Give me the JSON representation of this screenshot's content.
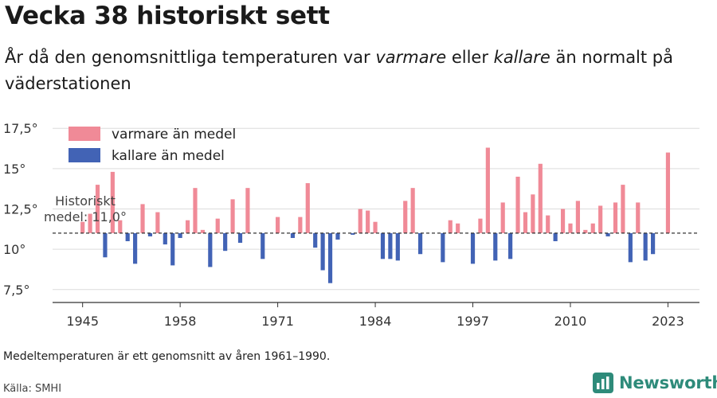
{
  "title": "Vecka 38 historiskt sett",
  "subtitle_before": "År då den genomsnittliga temperaturen var ",
  "subtitle_em1": "varmare",
  "subtitle_mid": " eller ",
  "subtitle_em2": "kallare",
  "subtitle_after": " än normalt på väderstationen",
  "note": "Medeltemperaturen är ett genomsnitt av åren 1961–1990.",
  "source": "Källa: SMHI",
  "brand": "Newsworthy",
  "colors": {
    "warm": "#f08a97",
    "cold": "#4263b5",
    "brand": "#2e8b7a"
  },
  "chart_data": {
    "type": "bar",
    "baseline": 11.0,
    "baseline_label_line1": "Historiskt",
    "baseline_label_line2": "medel: 11,0°",
    "x": [
      1945,
      1946,
      1947,
      1948,
      1949,
      1950,
      1951,
      1952,
      1953,
      1954,
      1955,
      1956,
      1957,
      1958,
      1959,
      1960,
      1961,
      1962,
      1963,
      1964,
      1965,
      1966,
      1967,
      1968,
      1969,
      1970,
      1971,
      1972,
      1973,
      1974,
      1975,
      1976,
      1977,
      1978,
      1979,
      1980,
      1981,
      1982,
      1983,
      1984,
      1985,
      1986,
      1987,
      1988,
      1989,
      1990,
      1991,
      1992,
      1993,
      1994,
      1995,
      1996,
      1997,
      1998,
      1999,
      2000,
      2001,
      2002,
      2003,
      2004,
      2005,
      2006,
      2007,
      2008,
      2009,
      2010,
      2011,
      2012,
      2013,
      2014,
      2015,
      2016,
      2017,
      2018,
      2019,
      2020,
      2021,
      2022,
      2023
    ],
    "values": [
      11.7,
      12.2,
      14.0,
      9.5,
      14.8,
      11.8,
      10.5,
      9.1,
      12.8,
      10.8,
      12.3,
      10.3,
      9.0,
      10.7,
      11.8,
      13.8,
      11.2,
      8.9,
      11.9,
      9.9,
      13.1,
      10.4,
      13.8,
      null,
      9.4,
      null,
      12.0,
      null,
      10.7,
      12.0,
      14.1,
      10.1,
      8.7,
      7.9,
      10.6,
      null,
      10.9,
      12.5,
      12.4,
      11.7,
      9.4,
      9.4,
      9.3,
      13.0,
      13.8,
      9.7,
      null,
      null,
      9.2,
      11.8,
      11.6,
      null,
      9.1,
      11.9,
      16.3,
      9.3,
      12.9,
      9.4,
      14.5,
      12.3,
      13.4,
      15.3,
      12.1,
      10.5,
      12.5,
      11.6,
      13.0,
      11.2,
      11.6,
      12.7,
      10.8,
      12.9,
      14.0,
      9.2,
      12.9,
      9.3,
      9.7,
      null,
      16.0
    ],
    "x_ticks": [
      1945,
      1958,
      1971,
      1984,
      1997,
      2010,
      2023
    ],
    "x_tick_labels": [
      "1945",
      "1958",
      "1971",
      "1984",
      "1997",
      "2010",
      "2023"
    ],
    "y_ticks": [
      7.5,
      10,
      12.5,
      15,
      17.5
    ],
    "y_tick_labels": [
      "7,5°",
      "10°",
      "12,5°",
      "15°",
      "17,5°"
    ],
    "ylim": [
      6.7,
      18.3
    ],
    "xlim": [
      1941.0,
      2027.2
    ],
    "legend": {
      "position": "top-left",
      "warm_label": "varmare än medel",
      "cold_label": "kallare än medel"
    },
    "grid": true
  }
}
